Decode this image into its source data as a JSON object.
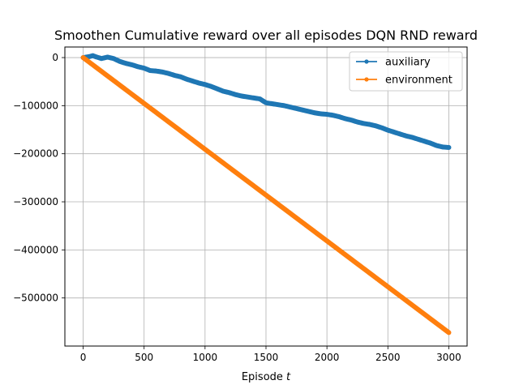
{
  "chart_data": {
    "type": "line",
    "title": "Smoothen Cumulative reward over all episodes DQN RND reward",
    "xlabel": "Episode",
    "xlabel_var": "t",
    "ylabel": "",
    "xlim": [
      -150,
      3150
    ],
    "ylim": [
      -600000,
      22000
    ],
    "xticks": [
      0,
      500,
      1000,
      1500,
      2000,
      2500,
      3000
    ],
    "yticks": [
      0,
      -100000,
      -200000,
      -300000,
      -400000,
      -500000
    ],
    "ytick_labels": [
      "0",
      "−100000",
      "−200000",
      "−300000",
      "−400000",
      "−500000"
    ],
    "grid": true,
    "legend_position": "top-right",
    "series": [
      {
        "name": "auxiliary",
        "color": "#1f77b4",
        "marker": "point",
        "x": [
          0,
          50,
          80,
          100,
          150,
          200,
          250,
          300,
          350,
          400,
          450,
          500,
          550,
          600,
          650,
          700,
          750,
          800,
          850,
          900,
          950,
          1000,
          1050,
          1100,
          1150,
          1200,
          1250,
          1300,
          1350,
          1400,
          1450,
          1500,
          1550,
          1600,
          1650,
          1700,
          1750,
          1800,
          1850,
          1900,
          1950,
          2000,
          2050,
          2100,
          2150,
          2200,
          2250,
          2300,
          2350,
          2400,
          2450,
          2500,
          2550,
          2600,
          2650,
          2700,
          2750,
          2800,
          2850,
          2900,
          2950,
          3000
        ],
        "y": [
          0,
          2000,
          4000,
          2000,
          -2000,
          1000,
          -2000,
          -8000,
          -12000,
          -15000,
          -19000,
          -22000,
          -27000,
          -28000,
          -30000,
          -33000,
          -37000,
          -40000,
          -45000,
          -49000,
          -53000,
          -56000,
          -60000,
          -65000,
          -70000,
          -73000,
          -77000,
          -80000,
          -82000,
          -84000,
          -86000,
          -94000,
          -96000,
          -98000,
          -100000,
          -103000,
          -106000,
          -109000,
          -112000,
          -115000,
          -117000,
          -118000,
          -120000,
          -123000,
          -127000,
          -130000,
          -134000,
          -137000,
          -139000,
          -142000,
          -146000,
          -151000,
          -155000,
          -159000,
          -163000,
          -166000,
          -170000,
          -174000,
          -178000,
          -183000,
          -186000,
          -187000
        ]
      },
      {
        "name": "environment",
        "color": "#ff7f0e",
        "marker": "point",
        "x": [
          0,
          3000
        ],
        "y": [
          0,
          -572000
        ]
      }
    ]
  }
}
